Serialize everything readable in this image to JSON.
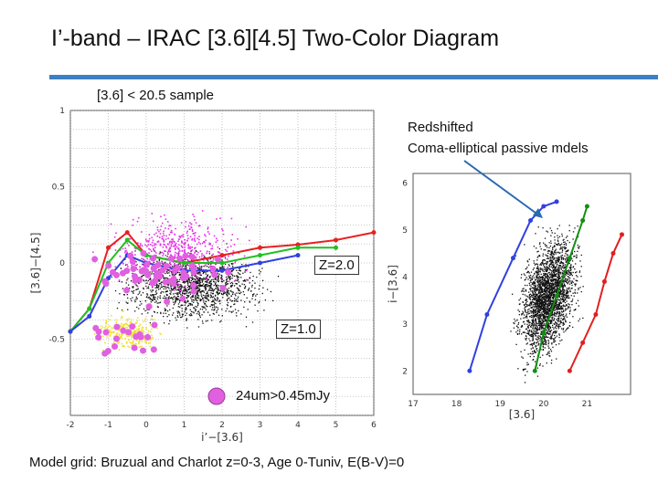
{
  "slide": {
    "title": "I’-band – IRAC [3.6][4.5] Two-Color Diagram",
    "subtitle": "[3.6] < 20.5 sample",
    "footer": "Model grid: Bruzual and Charlot  z=0-3, Age 0-Tuniv, E(B-V)=0",
    "accent_color": "#3b7fc4"
  },
  "annotations": {
    "redshifted_line1": "Redshifted",
    "redshifted_line2": "Coma-elliptical passive mdels",
    "z2": "Z=2.0",
    "z1": "Z=1.0",
    "legend_24um": "24um>0.45mJy"
  },
  "chart_data": [
    {
      "type": "scatter",
      "xlabel": "i’−[3.6]",
      "ylabel": "[3.6]−[4.5]",
      "xlim": [
        -2,
        6
      ],
      "ylim": [
        -1,
        1
      ],
      "x_ticks": [
        "-2",
        "-1",
        "0",
        "1",
        "2",
        "3",
        "4",
        "5",
        "6"
      ],
      "y_ticks": [
        "1",
        "0.5",
        "0",
        "-0.5"
      ],
      "grid": true,
      "series": [
        {
          "name": "",
          "color": "#111111"
        },
        {
          "name": "",
          "color": "#e830e8"
        },
        {
          "name": "",
          "color": "#f0e030"
        },
        {
          "name": "24um>0.45mJy",
          "color": "#e060e0"
        }
      ],
      "model_tracks": [
        {
          "color": "#e82020",
          "x": [
            -2,
            -1.5,
            -1,
            -0.5,
            0,
            1,
            2,
            3,
            4,
            5,
            6
          ],
          "y": [
            -0.45,
            -0.3,
            0.1,
            0.2,
            0.05,
            0.0,
            0.05,
            0.1,
            0.12,
            0.15,
            0.2
          ]
        },
        {
          "color": "#20c020",
          "x": [
            -2,
            -1.5,
            -1,
            -0.5,
            0,
            1,
            2,
            3,
            4,
            5
          ],
          "y": [
            -0.45,
            -0.3,
            0.0,
            0.15,
            0.05,
            0.0,
            0.0,
            0.05,
            0.1,
            0.1
          ]
        },
        {
          "color": "#3040e0",
          "x": [
            -2,
            -1.5,
            -1,
            -0.5,
            0,
            1,
            2,
            3,
            4
          ],
          "y": [
            -0.45,
            -0.35,
            -0.1,
            0.05,
            0.0,
            -0.05,
            -0.05,
            0.0,
            0.05
          ]
        }
      ]
    },
    {
      "type": "scatter",
      "xlabel": "[3.6]",
      "ylabel": "i−[3.6]",
      "xlim": [
        17,
        22
      ],
      "ylim": [
        1.5,
        6.2
      ],
      "x_ticks": [
        "17",
        "18",
        "19",
        "20",
        "21"
      ],
      "y_ticks": [
        "6",
        "5",
        "4",
        "3",
        "2"
      ],
      "series": [
        {
          "name": "",
          "color": "#111111"
        }
      ],
      "model_tracks": [
        {
          "color": "#3040e0",
          "x": [
            18.3,
            18.7,
            19.3,
            19.7,
            20.0,
            20.3
          ],
          "y": [
            2.0,
            3.2,
            4.4,
            5.2,
            5.5,
            5.6
          ]
        },
        {
          "color": "#109010",
          "x": [
            19.8,
            20.0,
            20.3,
            20.6,
            20.9,
            21.0
          ],
          "y": [
            2.0,
            2.8,
            3.6,
            4.4,
            5.2,
            5.5
          ]
        },
        {
          "color": "#e02020",
          "x": [
            20.6,
            20.9,
            21.2,
            21.4,
            21.6,
            21.8
          ],
          "y": [
            2.0,
            2.6,
            3.2,
            3.9,
            4.5,
            4.9
          ]
        }
      ]
    }
  ]
}
